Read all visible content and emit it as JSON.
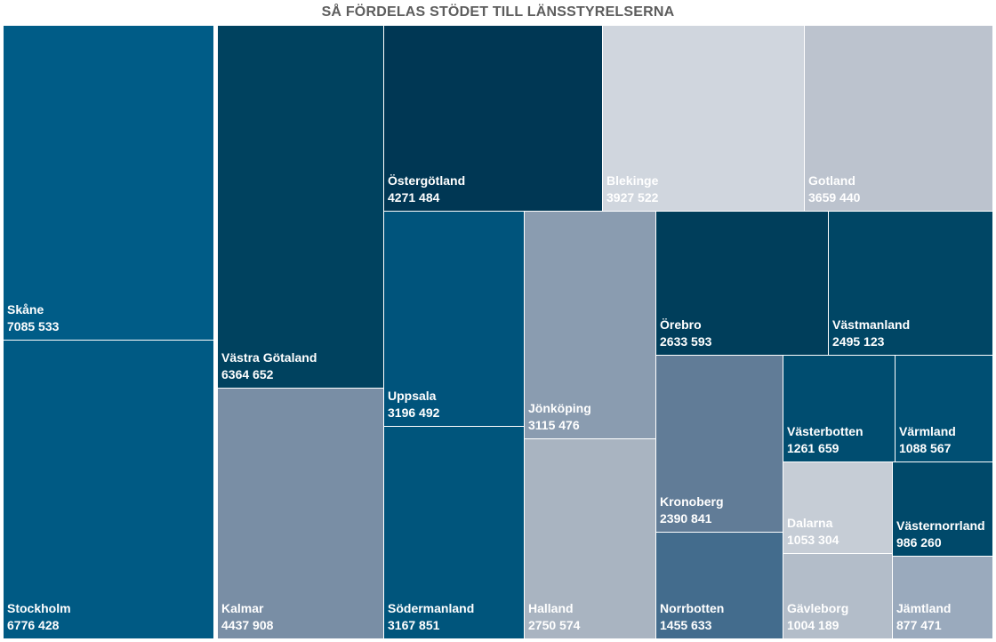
{
  "chart_data": {
    "type": "treemap",
    "title": "SÅ FÖRDELAS STÖDET TILL LÄNSSTYRELSERNA",
    "items": [
      {
        "name": "Skåne",
        "label": "7085 533",
        "value": 7085533,
        "color": "#005c87"
      },
      {
        "name": "Stockholm",
        "label": "6776 428",
        "value": 6776428,
        "color": "#005a84"
      },
      {
        "name": "Västra Götaland",
        "label": "6364 652",
        "value": 6364652,
        "color": "#00425f"
      },
      {
        "name": "Kalmar",
        "label": "4437 908",
        "value": 4437908,
        "color": "#798ea5"
      },
      {
        "name": "Östergötland",
        "label": "4271 484",
        "value": 4271484,
        "color": "#003754"
      },
      {
        "name": "Blekinge",
        "label": "3927 522",
        "value": 3927522,
        "color": "#d0d6de"
      },
      {
        "name": "Gotland",
        "label": "3659 440",
        "value": 3659440,
        "color": "#bcc3ce"
      },
      {
        "name": "Uppsala",
        "label": "3196 492",
        "value": 3196492,
        "color": "#00547c"
      },
      {
        "name": "Södermanland",
        "label": "3167 851",
        "value": 3167851,
        "color": "#00557c"
      },
      {
        "name": "Jönköping",
        "label": "3115 476",
        "value": 3115476,
        "color": "#8a9cb0"
      },
      {
        "name": "Halland",
        "label": "2750 574",
        "value": 2750574,
        "color": "#a9b4c1"
      },
      {
        "name": "Örebro",
        "label": "2633 593",
        "value": 2633593,
        "color": "#003e5b"
      },
      {
        "name": "Västmanland",
        "label": "2495 123",
        "value": 2495123,
        "color": "#004665"
      },
      {
        "name": "Kronoberg",
        "label": "2390 841",
        "value": 2390841,
        "color": "#617c97"
      },
      {
        "name": "Norrbotten",
        "label": "1455 633",
        "value": 1455633,
        "color": "#436c8d"
      },
      {
        "name": "Västerbotten",
        "label": "1261 659",
        "value": 1261659,
        "color": "#004d70"
      },
      {
        "name": "Värmland",
        "label": "1088 567",
        "value": 1088567,
        "color": "#004f73"
      },
      {
        "name": "Dalarna",
        "label": "1053 304",
        "value": 1053304,
        "color": "#c6cdd6"
      },
      {
        "name": "Gävleborg",
        "label": "1004 189",
        "value": 1004189,
        "color": "#b3bdc9"
      },
      {
        "name": "Västernorrland",
        "label": "986 260",
        "value": 986260,
        "color": "#00496a"
      },
      {
        "name": "Jämtland",
        "label": "877 471",
        "value": 877471,
        "color": "#9aaabd"
      }
    ]
  }
}
